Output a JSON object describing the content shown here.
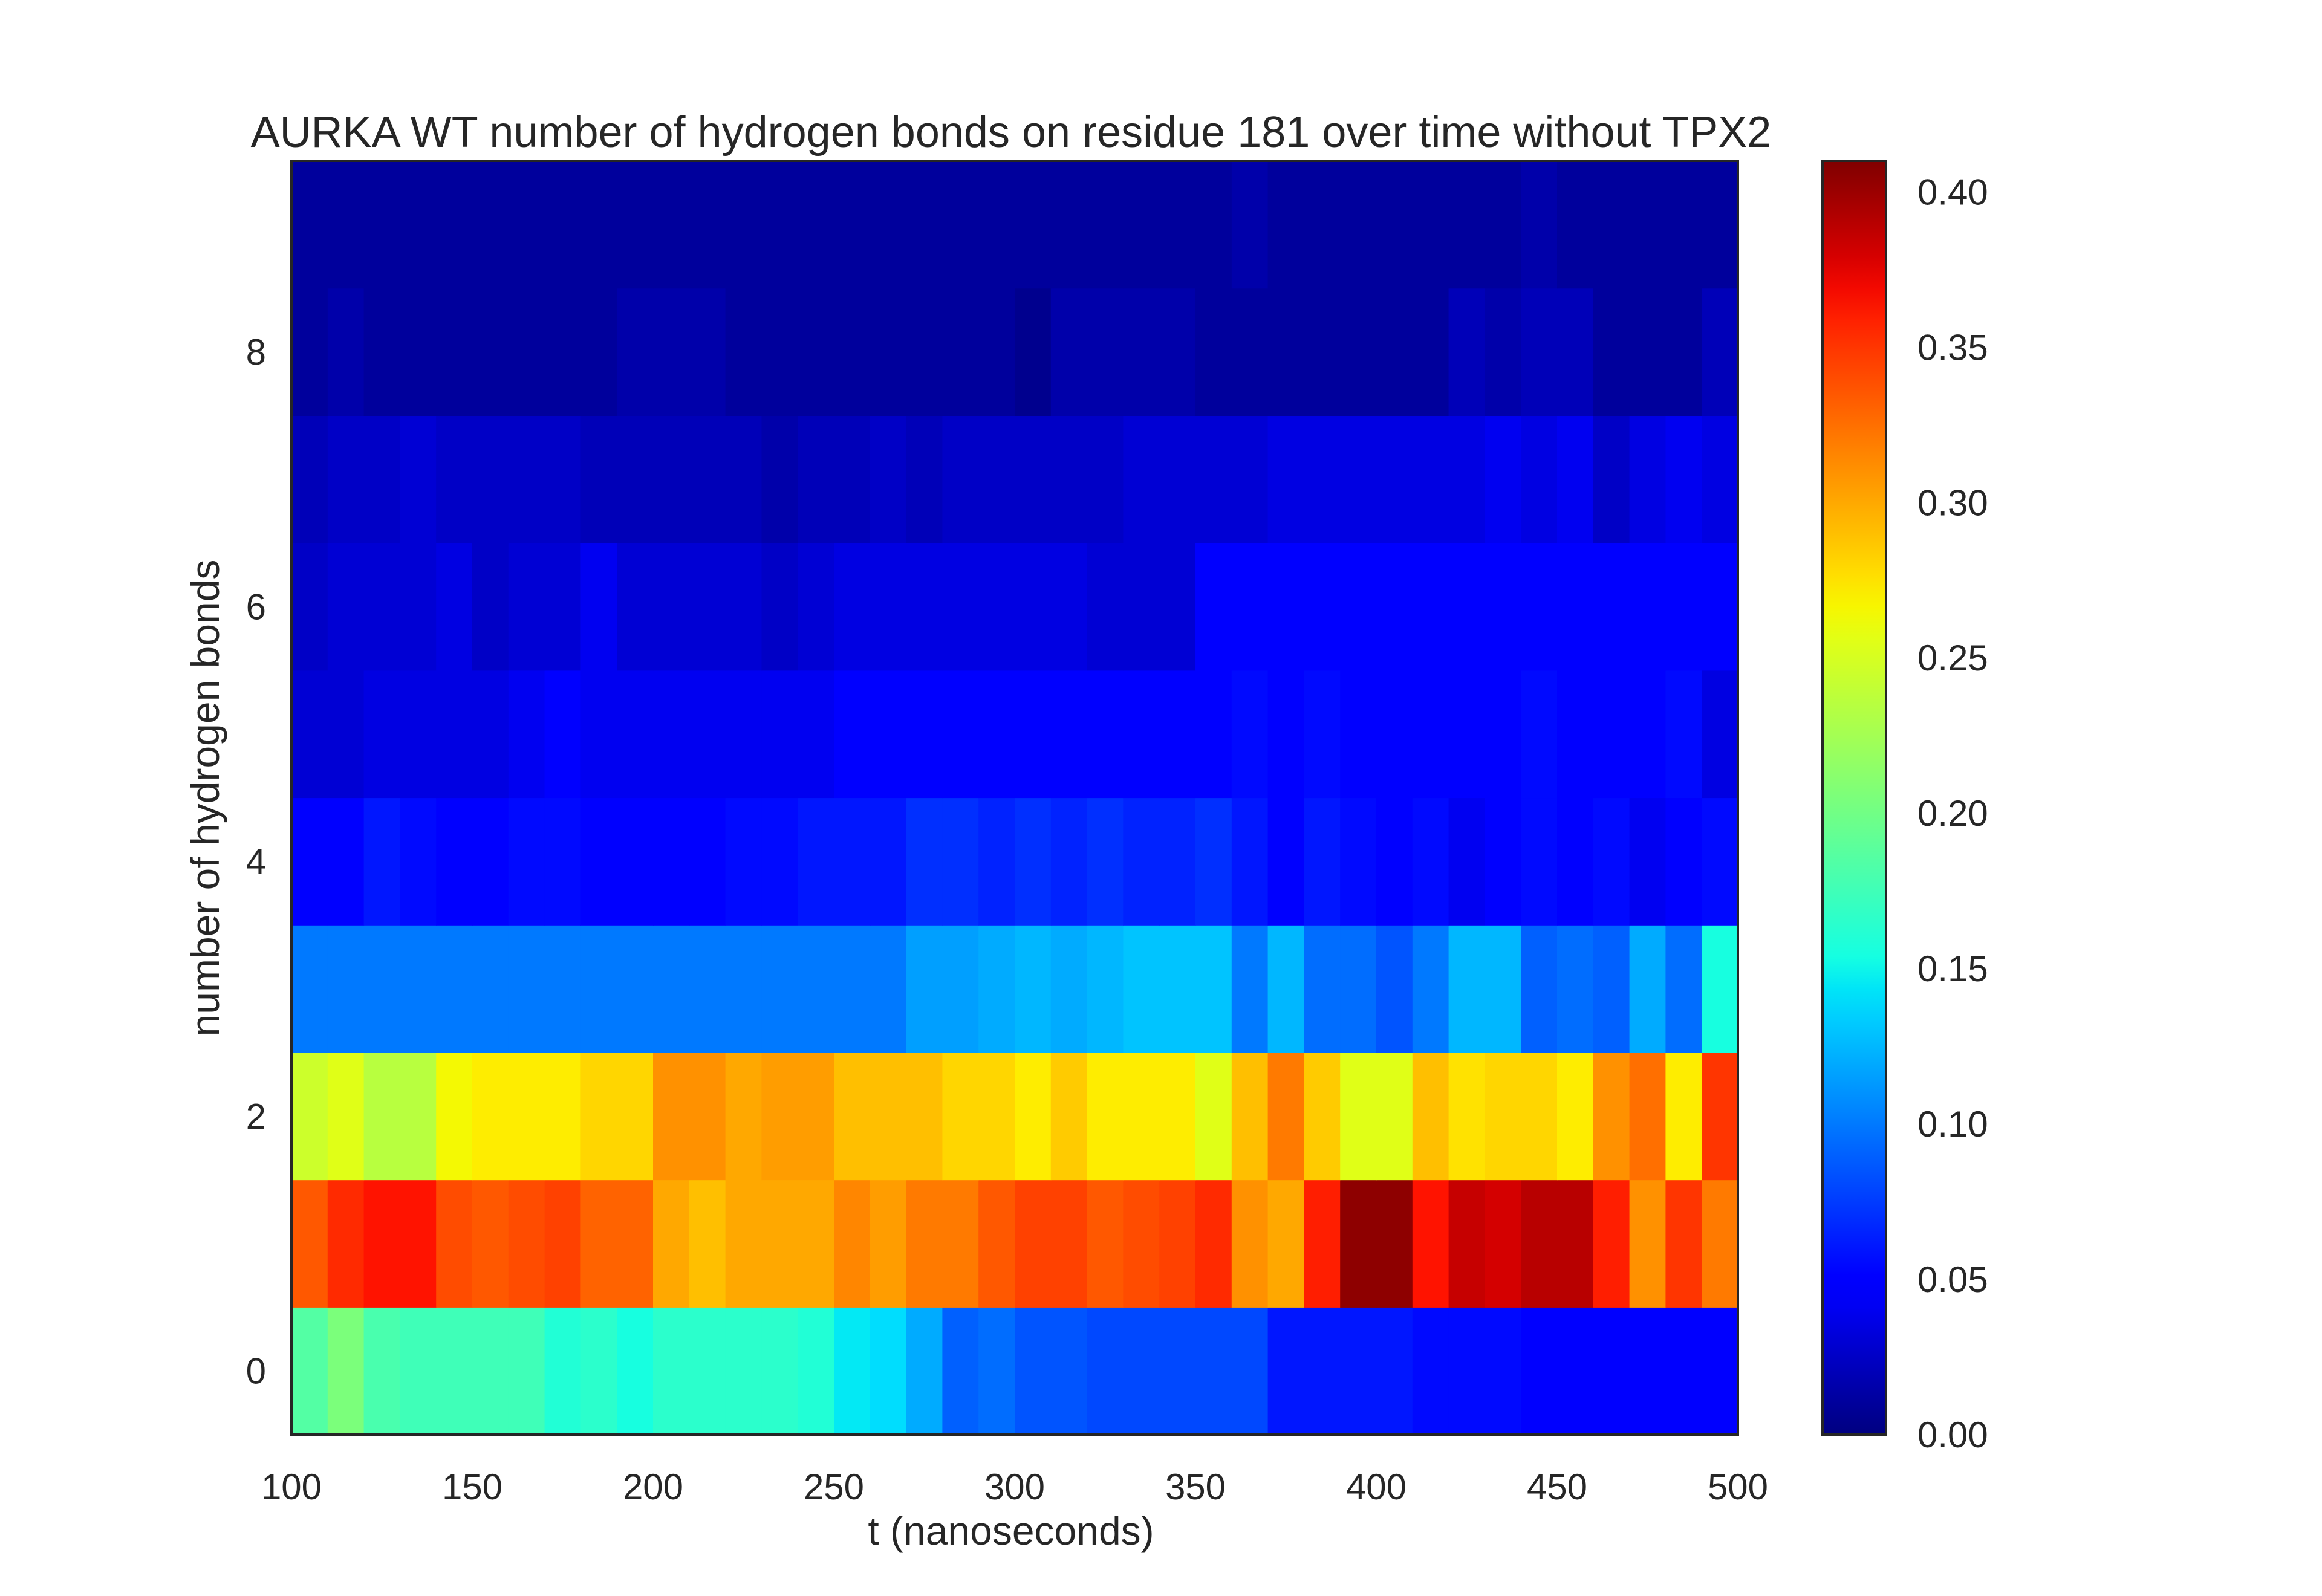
{
  "chart_data": {
    "type": "heatmap",
    "title": "AURKA WT number of hydrogen bonds on residue 181 over time without TPX2",
    "xlabel": "t (nanoseconds)",
    "ylabel": "number of hydrogen bonds",
    "xlim": [
      100,
      500
    ],
    "ylim": [
      -0.5,
      9.5
    ],
    "x_ticks": [
      100,
      150,
      200,
      250,
      300,
      350,
      400,
      450,
      500
    ],
    "y_ticks": [
      0,
      2,
      4,
      6,
      8
    ],
    "bin_width_ns": 10,
    "x_bin_starts": [
      100,
      110,
      120,
      130,
      140,
      150,
      160,
      170,
      180,
      190,
      200,
      210,
      220,
      230,
      240,
      250,
      260,
      270,
      280,
      290,
      300,
      310,
      320,
      330,
      340,
      350,
      360,
      370,
      380,
      390,
      400,
      410,
      420,
      430,
      440,
      450,
      460,
      470,
      480,
      490
    ],
    "y_rows": [
      0,
      1,
      2,
      3,
      4,
      5,
      6,
      7,
      8,
      9
    ],
    "colormap": "jet",
    "colorbar": {
      "min": 0.0,
      "max": 0.41,
      "ticks": [
        0.0,
        0.05,
        0.1,
        0.15,
        0.2,
        0.25,
        0.3,
        0.35,
        0.4
      ],
      "tick_labels": [
        "0.00",
        "0.05",
        "0.10",
        "0.15",
        "0.20",
        "0.25",
        "0.30",
        "0.35",
        "0.40"
      ]
    },
    "grid": false,
    "values": [
      [
        0.185,
        0.205,
        0.18,
        0.175,
        0.175,
        0.175,
        0.175,
        0.16,
        0.165,
        0.155,
        0.165,
        0.165,
        0.165,
        0.165,
        0.16,
        0.145,
        0.14,
        0.12,
        0.09,
        0.095,
        0.085,
        0.085,
        0.08,
        0.08,
        0.08,
        0.08,
        0.08,
        0.06,
        0.06,
        0.06,
        0.06,
        0.055,
        0.055,
        0.055,
        0.045,
        0.045,
        0.05,
        0.05,
        0.05,
        0.05
      ],
      [
        0.335,
        0.355,
        0.365,
        0.365,
        0.34,
        0.335,
        0.34,
        0.345,
        0.33,
        0.33,
        0.3,
        0.29,
        0.3,
        0.3,
        0.3,
        0.315,
        0.305,
        0.32,
        0.32,
        0.335,
        0.345,
        0.345,
        0.335,
        0.34,
        0.345,
        0.355,
        0.31,
        0.3,
        0.36,
        0.405,
        0.405,
        0.365,
        0.385,
        0.38,
        0.39,
        0.39,
        0.36,
        0.31,
        0.35,
        0.32
      ],
      [
        0.245,
        0.255,
        0.235,
        0.235,
        0.265,
        0.27,
        0.27,
        0.27,
        0.28,
        0.28,
        0.31,
        0.31,
        0.3,
        0.305,
        0.305,
        0.29,
        0.29,
        0.29,
        0.28,
        0.28,
        0.27,
        0.285,
        0.27,
        0.27,
        0.27,
        0.255,
        0.29,
        0.32,
        0.285,
        0.255,
        0.255,
        0.29,
        0.275,
        0.28,
        0.28,
        0.27,
        0.31,
        0.325,
        0.27,
        0.35
      ],
      [
        0.1,
        0.1,
        0.1,
        0.1,
        0.1,
        0.1,
        0.1,
        0.1,
        0.1,
        0.1,
        0.1,
        0.1,
        0.1,
        0.1,
        0.1,
        0.1,
        0.1,
        0.115,
        0.115,
        0.12,
        0.125,
        0.12,
        0.125,
        0.13,
        0.13,
        0.13,
        0.1,
        0.125,
        0.095,
        0.095,
        0.085,
        0.1,
        0.125,
        0.125,
        0.09,
        0.095,
        0.09,
        0.12,
        0.095,
        0.155
      ],
      [
        0.045,
        0.045,
        0.06,
        0.055,
        0.045,
        0.05,
        0.055,
        0.055,
        0.05,
        0.05,
        0.05,
        0.05,
        0.055,
        0.055,
        0.06,
        0.06,
        0.06,
        0.07,
        0.07,
        0.065,
        0.07,
        0.065,
        0.07,
        0.065,
        0.065,
        0.07,
        0.06,
        0.045,
        0.06,
        0.055,
        0.05,
        0.055,
        0.04,
        0.05,
        0.055,
        0.05,
        0.055,
        0.04,
        0.05,
        0.055
      ],
      [
        0.03,
        0.03,
        0.035,
        0.035,
        0.035,
        0.035,
        0.04,
        0.045,
        0.04,
        0.04,
        0.04,
        0.04,
        0.04,
        0.04,
        0.04,
        0.045,
        0.045,
        0.05,
        0.05,
        0.05,
        0.05,
        0.05,
        0.05,
        0.05,
        0.05,
        0.05,
        0.055,
        0.05,
        0.055,
        0.045,
        0.045,
        0.045,
        0.05,
        0.05,
        0.055,
        0.05,
        0.05,
        0.05,
        0.055,
        0.035
      ],
      [
        0.025,
        0.03,
        0.03,
        0.03,
        0.035,
        0.025,
        0.03,
        0.03,
        0.04,
        0.03,
        0.03,
        0.03,
        0.03,
        0.025,
        0.03,
        0.035,
        0.035,
        0.035,
        0.035,
        0.035,
        0.035,
        0.035,
        0.03,
        0.03,
        0.03,
        0.045,
        0.045,
        0.045,
        0.045,
        0.045,
        0.05,
        0.045,
        0.045,
        0.045,
        0.045,
        0.045,
        0.045,
        0.045,
        0.05,
        0.05
      ],
      [
        0.02,
        0.025,
        0.025,
        0.03,
        0.025,
        0.025,
        0.025,
        0.025,
        0.02,
        0.02,
        0.02,
        0.02,
        0.02,
        0.015,
        0.02,
        0.02,
        0.025,
        0.02,
        0.025,
        0.025,
        0.025,
        0.025,
        0.025,
        0.03,
        0.03,
        0.03,
        0.03,
        0.035,
        0.035,
        0.035,
        0.035,
        0.035,
        0.035,
        0.04,
        0.035,
        0.04,
        0.025,
        0.035,
        0.04,
        0.035
      ],
      [
        0.01,
        0.015,
        0.01,
        0.01,
        0.01,
        0.01,
        0.01,
        0.01,
        0.01,
        0.015,
        0.015,
        0.015,
        0.01,
        0.01,
        0.01,
        0.01,
        0.01,
        0.01,
        0.01,
        0.01,
        0.005,
        0.015,
        0.015,
        0.015,
        0.015,
        0.01,
        0.01,
        0.01,
        0.01,
        0.01,
        0.01,
        0.01,
        0.02,
        0.015,
        0.02,
        0.02,
        0.01,
        0.01,
        0.01,
        0.02
      ],
      [
        0.01,
        0.01,
        0.01,
        0.01,
        0.01,
        0.01,
        0.01,
        0.01,
        0.01,
        0.01,
        0.01,
        0.01,
        0.01,
        0.01,
        0.01,
        0.01,
        0.01,
        0.01,
        0.01,
        0.01,
        0.01,
        0.01,
        0.01,
        0.01,
        0.01,
        0.01,
        0.015,
        0.01,
        0.01,
        0.01,
        0.01,
        0.01,
        0.01,
        0.01,
        0.015,
        0.01,
        0.01,
        0.01,
        0.01,
        0.01
      ]
    ]
  }
}
